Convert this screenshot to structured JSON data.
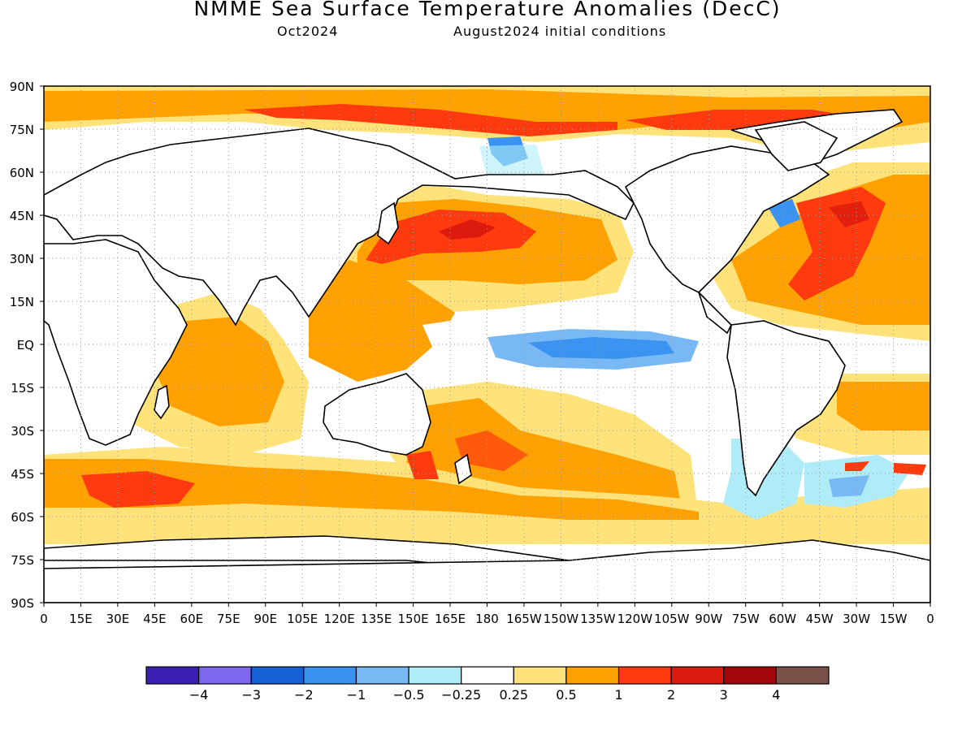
{
  "title": "NMME Sea Surface Temperature Anomalies (DecC)",
  "subtitle_left": "Oct2024",
  "subtitle_right": "August2024 initial conditions",
  "map": {
    "lat_ticks": [
      {
        "value": 90,
        "label": "90N"
      },
      {
        "value": 75,
        "label": "75N"
      },
      {
        "value": 60,
        "label": "60N"
      },
      {
        "value": 45,
        "label": "45N"
      },
      {
        "value": 30,
        "label": "30N"
      },
      {
        "value": 15,
        "label": "15N"
      },
      {
        "value": 0,
        "label": "EQ"
      },
      {
        "value": -15,
        "label": "15S"
      },
      {
        "value": -30,
        "label": "30S"
      },
      {
        "value": -45,
        "label": "45S"
      },
      {
        "value": -60,
        "label": "60S"
      },
      {
        "value": -75,
        "label": "75S"
      },
      {
        "value": -90,
        "label": "90S"
      }
    ],
    "lon_ticks": [
      {
        "value": 0,
        "label": "0"
      },
      {
        "value": 15,
        "label": "15E"
      },
      {
        "value": 30,
        "label": "30E"
      },
      {
        "value": 45,
        "label": "45E"
      },
      {
        "value": 60,
        "label": "60E"
      },
      {
        "value": 75,
        "label": "75E"
      },
      {
        "value": 90,
        "label": "90E"
      },
      {
        "value": 105,
        "label": "105E"
      },
      {
        "value": 120,
        "label": "120E"
      },
      {
        "value": 135,
        "label": "135E"
      },
      {
        "value": 150,
        "label": "150E"
      },
      {
        "value": 165,
        "label": "165E"
      },
      {
        "value": 180,
        "label": "180"
      },
      {
        "value": 195,
        "label": "165W"
      },
      {
        "value": 210,
        "label": "150W"
      },
      {
        "value": 225,
        "label": "135W"
      },
      {
        "value": 240,
        "label": "120W"
      },
      {
        "value": 255,
        "label": "105W"
      },
      {
        "value": 270,
        "label": "90W"
      },
      {
        "value": 285,
        "label": "75W"
      },
      {
        "value": 300,
        "label": "60W"
      },
      {
        "value": 315,
        "label": "45W"
      },
      {
        "value": 330,
        "label": "30W"
      },
      {
        "value": 345,
        "label": "15W"
      },
      {
        "value": 360,
        "label": "0"
      }
    ],
    "background": "#ffffff",
    "coastline_color": "#000000",
    "gridlines": "dotted"
  },
  "colorbar": {
    "colors": [
      "#3a1fb2",
      "#7b68ee",
      "#1560d4",
      "#3a93f0",
      "#78b8f5",
      "#b0ecf8",
      "#ffffff",
      "#ffe27a",
      "#ffa100",
      "#ff3a0f",
      "#dc1a0d",
      "#a4050b",
      "#7a5048"
    ],
    "labels": [
      "−4",
      "−3",
      "−2",
      "−1",
      "−0.5",
      "−0.25",
      "0.25",
      "0.5",
      "1",
      "2",
      "3",
      "4"
    ]
  },
  "anomaly_regions": [
    {
      "name": "global-warm-background",
      "bin": "0.25 to 0.5",
      "color": "#ffe27a"
    },
    {
      "name": "arctic-and-north-pacific-warm",
      "bin": "0.5 to 1",
      "color": "#ffa100"
    },
    {
      "name": "kuroshio-extension-hotspot",
      "bin": "1 to 2",
      "color": "#ff3a0f"
    },
    {
      "name": "north-atlantic-hotspot",
      "bin": "1 to 2",
      "color": "#ff3a0f"
    },
    {
      "name": "equatorial-pacific-cool-tongue",
      "bin": "-1 to -0.5",
      "color": "#78b8f5"
    },
    {
      "name": "south-atlantic-cool-patches",
      "bin": "-0.5 to -0.25",
      "color": "#b0ecf8"
    }
  ]
}
